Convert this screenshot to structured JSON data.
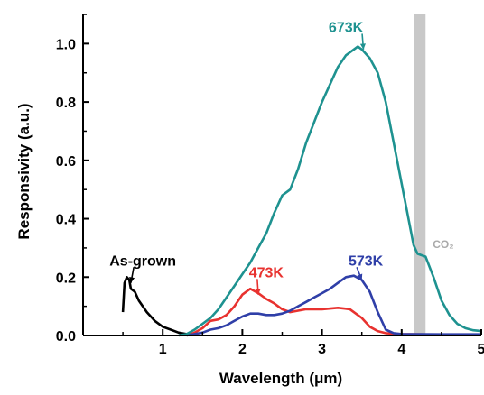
{
  "chart_data": {
    "type": "line",
    "xlabel": "Wavelength (μm)",
    "ylabel": "Responsivity (a.u.)",
    "xlim": [
      0,
      5
    ],
    "ylim": [
      0,
      1.1
    ],
    "xticks": [
      "1",
      "2",
      "3",
      "4",
      "5"
    ],
    "yticks": [
      "0.0",
      "0.2",
      "0.4",
      "0.6",
      "0.8",
      "1.0"
    ],
    "grid": false,
    "shaded_band": {
      "x": [
        4.15,
        4.3
      ],
      "label": "CO₂",
      "color": "#c8c8c8"
    },
    "series": [
      {
        "name": "As-grown",
        "color": "#000000",
        "x": [
          0.5,
          0.52,
          0.55,
          0.58,
          0.6,
          0.65,
          0.7,
          0.8,
          0.9,
          1.0,
          1.1,
          1.2,
          1.3
        ],
        "y": [
          0.08,
          0.18,
          0.2,
          0.19,
          0.16,
          0.15,
          0.12,
          0.08,
          0.05,
          0.03,
          0.02,
          0.01,
          0.005
        ]
      },
      {
        "name": "473K",
        "color": "#e8322f",
        "x": [
          1.3,
          1.4,
          1.5,
          1.6,
          1.7,
          1.8,
          1.9,
          2.0,
          2.1,
          2.2,
          2.3,
          2.4,
          2.5,
          2.6,
          2.7,
          2.8,
          3.0,
          3.2,
          3.35,
          3.5,
          3.6,
          3.7,
          3.8,
          4.0,
          4.5,
          5.0
        ],
        "y": [
          0.0,
          0.01,
          0.025,
          0.05,
          0.055,
          0.07,
          0.1,
          0.14,
          0.16,
          0.145,
          0.125,
          0.11,
          0.09,
          0.08,
          0.085,
          0.09,
          0.09,
          0.095,
          0.09,
          0.06,
          0.03,
          0.015,
          0.008,
          0.005,
          0.003,
          0.002
        ]
      },
      {
        "name": "573K",
        "color": "#2f3fa8",
        "x": [
          1.3,
          1.4,
          1.5,
          1.6,
          1.7,
          1.8,
          1.9,
          2.0,
          2.1,
          2.2,
          2.3,
          2.4,
          2.5,
          2.6,
          2.7,
          2.8,
          2.9,
          3.0,
          3.1,
          3.2,
          3.3,
          3.4,
          3.5,
          3.6,
          3.7,
          3.8,
          3.9,
          4.0,
          4.5,
          5.0
        ],
        "y": [
          0.0,
          0.005,
          0.01,
          0.02,
          0.025,
          0.035,
          0.05,
          0.065,
          0.075,
          0.075,
          0.07,
          0.07,
          0.075,
          0.085,
          0.1,
          0.115,
          0.13,
          0.145,
          0.16,
          0.18,
          0.2,
          0.205,
          0.19,
          0.15,
          0.08,
          0.02,
          0.008,
          0.005,
          0.004,
          0.004
        ]
      },
      {
        "name": "673K",
        "color": "#1e9290",
        "x": [
          1.2,
          1.3,
          1.4,
          1.5,
          1.6,
          1.7,
          1.8,
          1.9,
          2.0,
          2.1,
          2.2,
          2.3,
          2.4,
          2.5,
          2.6,
          2.7,
          2.8,
          2.9,
          3.0,
          3.1,
          3.2,
          3.3,
          3.4,
          3.45,
          3.5,
          3.6,
          3.7,
          3.8,
          3.9,
          4.0,
          4.1,
          4.15,
          4.2,
          4.3,
          4.4,
          4.5,
          4.6,
          4.7,
          4.8,
          4.9,
          5.0
        ],
        "y": [
          0.0,
          0.005,
          0.02,
          0.04,
          0.06,
          0.09,
          0.13,
          0.17,
          0.21,
          0.25,
          0.3,
          0.35,
          0.42,
          0.48,
          0.5,
          0.57,
          0.66,
          0.73,
          0.8,
          0.86,
          0.92,
          0.96,
          0.98,
          0.99,
          0.98,
          0.95,
          0.9,
          0.8,
          0.66,
          0.52,
          0.38,
          0.31,
          0.28,
          0.27,
          0.2,
          0.12,
          0.07,
          0.04,
          0.025,
          0.018,
          0.015
        ]
      }
    ],
    "annotations": [
      {
        "text": "As-grown",
        "color": "#000000",
        "x": 0.75,
        "y": 0.24,
        "arrow_to": [
          0.6,
          0.18
        ]
      },
      {
        "text": "473K",
        "color": "#e8322f",
        "x": 2.3,
        "y": 0.2,
        "arrow_to": [
          2.2,
          0.14
        ]
      },
      {
        "text": "573K",
        "color": "#2f3fa8",
        "x": 3.55,
        "y": 0.24,
        "arrow_to": [
          3.5,
          0.19
        ]
      },
      {
        "text": "673K",
        "color": "#1e9290",
        "x": 3.3,
        "y": 1.04,
        "arrow_to": [
          3.52,
          0.98
        ]
      }
    ]
  }
}
